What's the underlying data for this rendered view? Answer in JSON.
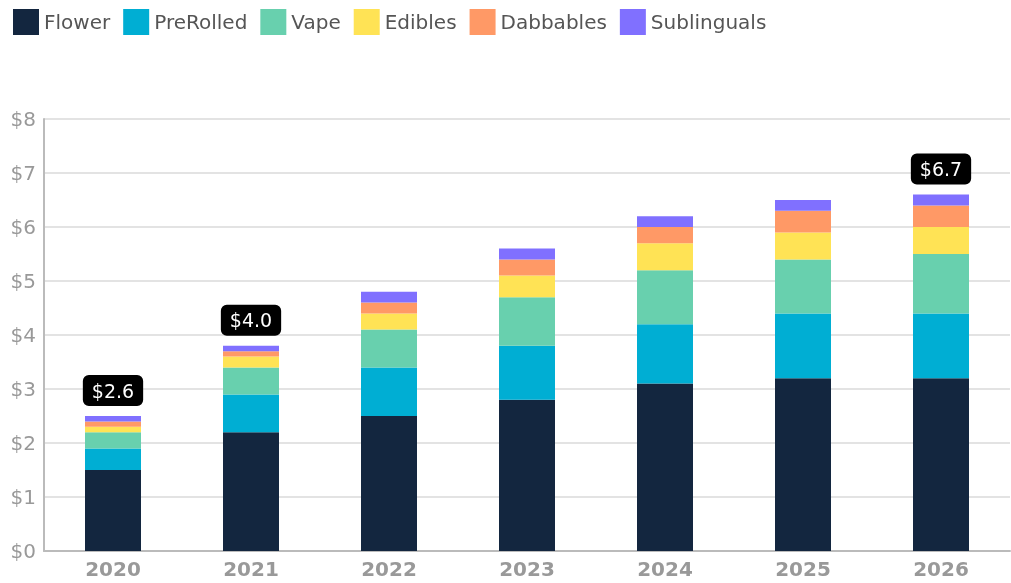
{
  "chart_data": {
    "type": "bar",
    "stacked": true,
    "categories": [
      "2020",
      "2021",
      "2022",
      "2023",
      "2024",
      "2025",
      "2026"
    ],
    "series": [
      {
        "name": "Flower",
        "color": "#13263f",
        "values": [
          1.5,
          2.2,
          2.5,
          2.8,
          3.1,
          3.2,
          3.2
        ]
      },
      {
        "name": "PreRolled",
        "color": "#00aed3",
        "values": [
          0.4,
          0.7,
          0.9,
          1.0,
          1.1,
          1.2,
          1.2
        ]
      },
      {
        "name": "Vape",
        "color": "#68d0ae",
        "values": [
          0.3,
          0.5,
          0.7,
          0.9,
          1.0,
          1.0,
          1.1
        ]
      },
      {
        "name": "Edibles",
        "color": "#ffe355",
        "values": [
          0.1,
          0.2,
          0.3,
          0.4,
          0.5,
          0.5,
          0.5
        ]
      },
      {
        "name": "Dabbables",
        "color": "#ff9966",
        "values": [
          0.1,
          0.1,
          0.2,
          0.3,
          0.3,
          0.4,
          0.4
        ]
      },
      {
        "name": "Sublinguals",
        "color": "#8070ff",
        "values": [
          0.1,
          0.1,
          0.2,
          0.2,
          0.2,
          0.2,
          0.2
        ]
      }
    ],
    "totals": [
      "$2.6",
      "$4.0",
      null,
      null,
      null,
      null,
      "$6.7"
    ],
    "ylim": [
      0,
      8
    ],
    "yticks": [
      {
        "value": 0,
        "label": "$0"
      },
      {
        "value": 1,
        "label": "$1"
      },
      {
        "value": 2,
        "label": "$2"
      },
      {
        "value": 3,
        "label": "$3"
      },
      {
        "value": 4,
        "label": "$4"
      },
      {
        "value": 5,
        "label": "$5"
      },
      {
        "value": 6,
        "label": "$6"
      },
      {
        "value": 7,
        "label": "$7"
      },
      {
        "value": 8,
        "label": "$8"
      }
    ],
    "grid": "y",
    "legend": "top left"
  }
}
